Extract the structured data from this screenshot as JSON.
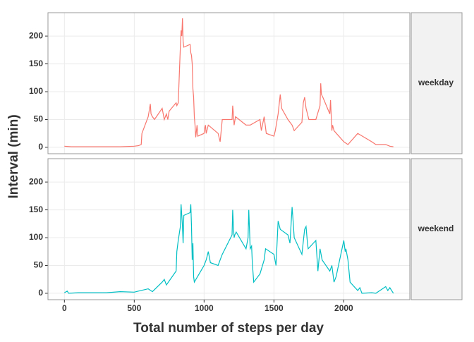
{
  "chart_data": {
    "type": "line",
    "xlabel": "Total number of steps per day",
    "ylabel": "Interval (min)",
    "xlim": [
      -117.75,
      2472.75
    ],
    "xticks": [
      0,
      500,
      1000,
      1500,
      2000
    ],
    "ylim": [
      -11.5,
      242
    ],
    "yticks": [
      0,
      50,
      100,
      150,
      200
    ],
    "grid": true,
    "series": [
      {
        "name": "weekday",
        "color": "#f8766d",
        "x": [
          0,
          50,
          100,
          150,
          200,
          300,
          400,
          500,
          530,
          550,
          555,
          600,
          610,
          615,
          620,
          630,
          645,
          700,
          715,
          730,
          740,
          750,
          800,
          805,
          815,
          830,
          835,
          840,
          845,
          850,
          855,
          900,
          905,
          910,
          915,
          920,
          925,
          930,
          935,
          940,
          945,
          950,
          955,
          1000,
          1005,
          1010,
          1015,
          1020,
          1030,
          1100,
          1115,
          1130,
          1200,
          1205,
          1210,
          1215,
          1225,
          1300,
          1330,
          1400,
          1410,
          1430,
          1445,
          1500,
          1510,
          1530,
          1545,
          1555,
          1600,
          1630,
          1645,
          1700,
          1710,
          1720,
          1730,
          1750,
          1800,
          1830,
          1835,
          1840,
          1850,
          1900,
          1905,
          1915,
          1920,
          1930,
          2000,
          2030,
          2100,
          2200,
          2230,
          2300,
          2330,
          2355
        ],
        "values": [
          2,
          1,
          1,
          1,
          1,
          1,
          1,
          2,
          3,
          5,
          25,
          55,
          70,
          78,
          60,
          55,
          50,
          70,
          50,
          60,
          50,
          65,
          80,
          75,
          80,
          180,
          210,
          200,
          232,
          190,
          180,
          185,
          170,
          165,
          150,
          105,
          90,
          55,
          40,
          18,
          30,
          40,
          20,
          25,
          35,
          40,
          25,
          30,
          40,
          25,
          10,
          50,
          50,
          75,
          60,
          40,
          55,
          40,
          40,
          50,
          30,
          55,
          25,
          20,
          30,
          60,
          95,
          70,
          50,
          40,
          30,
          45,
          80,
          90,
          70,
          50,
          50,
          75,
          115,
          95,
          90,
          60,
          85,
          30,
          40,
          30,
          10,
          5,
          25,
          10,
          5,
          5,
          2,
          1
        ]
      },
      {
        "name": "weekend",
        "color": "#00bfc4",
        "x": [
          0,
          20,
          30,
          100,
          200,
          300,
          400,
          500,
          530,
          600,
          630,
          700,
          715,
          730,
          800,
          805,
          815,
          830,
          835,
          840,
          845,
          850,
          855,
          900,
          905,
          910,
          915,
          920,
          925,
          930,
          1000,
          1015,
          1030,
          1045,
          1100,
          1115,
          1130,
          1200,
          1205,
          1210,
          1215,
          1220,
          1230,
          1300,
          1315,
          1320,
          1330,
          1340,
          1345,
          1355,
          1400,
          1430,
          1440,
          1500,
          1515,
          1530,
          1545,
          1600,
          1615,
          1630,
          1640,
          1645,
          1700,
          1720,
          1730,
          1740,
          1745,
          1800,
          1815,
          1830,
          1845,
          1900,
          1915,
          1930,
          1945,
          2000,
          2010,
          2015,
          2030,
          2045,
          2100,
          2115,
          2130,
          2200,
          2230,
          2300,
          2315,
          2330,
          2355
        ],
        "values": [
          1,
          4,
          0,
          1,
          1,
          1,
          3,
          2,
          4,
          8,
          3,
          20,
          25,
          15,
          40,
          75,
          95,
          120,
          160,
          140,
          120,
          90,
          140,
          145,
          160,
          120,
          60,
          90,
          30,
          20,
          50,
          60,
          75,
          55,
          50,
          60,
          70,
          105,
          150,
          120,
          100,
          105,
          110,
          80,
          100,
          150,
          80,
          85,
          55,
          20,
          35,
          60,
          80,
          70,
          50,
          130,
          115,
          105,
          90,
          155,
          120,
          100,
          70,
          115,
          120,
          90,
          80,
          95,
          40,
          80,
          60,
          40,
          50,
          20,
          30,
          95,
          75,
          80,
          60,
          20,
          5,
          10,
          0,
          1,
          0,
          12,
          5,
          10,
          0
        ]
      }
    ]
  }
}
